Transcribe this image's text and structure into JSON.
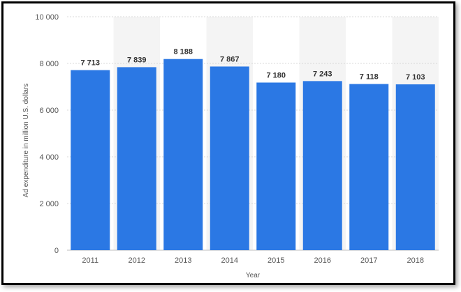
{
  "chart_data": {
    "type": "bar",
    "categories": [
      "2011",
      "2012",
      "2013",
      "2014",
      "2015",
      "2016",
      "2017",
      "2018"
    ],
    "values": [
      7713,
      7839,
      8188,
      7867,
      7180,
      7243,
      7118,
      7103
    ],
    "value_labels": [
      "7 713",
      "7 839",
      "8 188",
      "7 867",
      "7 180",
      "7 243",
      "7 118",
      "7 103"
    ],
    "yticks": [
      0,
      2000,
      4000,
      6000,
      8000,
      10000
    ],
    "ytick_labels": [
      "0",
      "2 000",
      "4 000",
      "6 000",
      "8 000",
      "10 000"
    ],
    "xlabel": "Year",
    "ylabel": "Ad expenditure in million U.S. dollars",
    "ylim": [
      0,
      10000
    ],
    "grid": true,
    "colors": {
      "bar": "#2b78e4",
      "band": "#f4f4f4",
      "grid": "#d9d9d9",
      "text": "#555555"
    }
  }
}
